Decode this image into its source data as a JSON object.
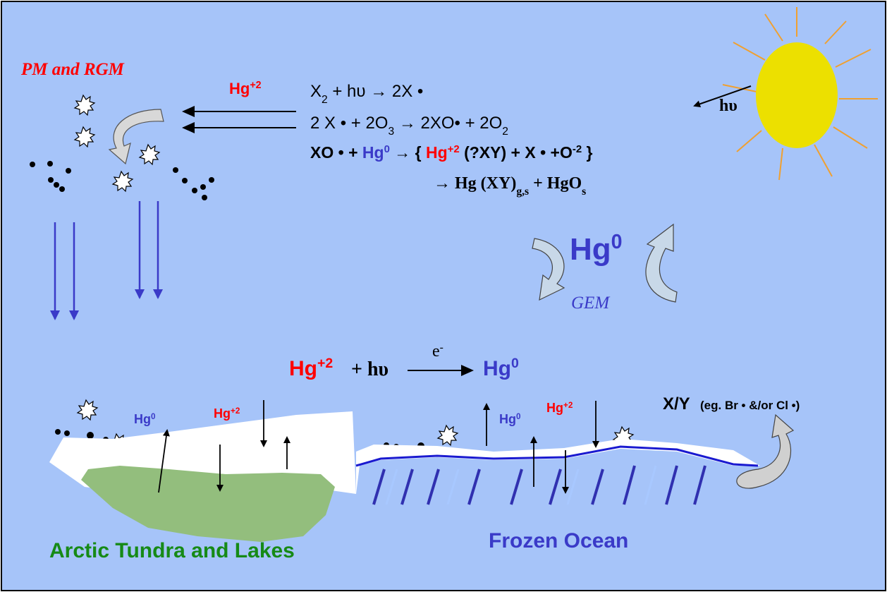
{
  "atmosphere": {
    "particles_label": "PM and RGM",
    "oxidized_species": {
      "text": "Hg",
      "sup": "+2"
    },
    "reactions": [
      [
        {
          "text": "X",
          "sub": "2"
        },
        {
          "text": " + hυ  →   2X •"
        }
      ],
      [
        {
          "text": "2 X • + 2O",
          "sub": "3"
        },
        {
          "text": " →  2XO• + 2O",
          "sub": "2"
        }
      ],
      [
        {
          "text": "XO • + "
        },
        {
          "text": "Hg",
          "sup": "0",
          "color": "#3a3ac8"
        },
        {
          "text": " → { "
        },
        {
          "text": "Hg",
          "sup": "+2",
          "color": "#ff0000"
        },
        {
          "text": " (?XY) + X • +O",
          "sup": "-2"
        },
        {
          "text": " }"
        }
      ],
      [
        {
          "text": "→ Hg (XY)",
          "sub": "g,s"
        },
        {
          "text": " + HgO",
          "sub": "s"
        }
      ]
    ],
    "photon": "hυ",
    "gem_species": {
      "text": "Hg",
      "sup": "0"
    },
    "gem_label": "GEM"
  },
  "surface": {
    "photoreduction": {
      "reactant": {
        "text": "Hg",
        "sup": "+2"
      },
      "operator": "+ hυ",
      "electron": {
        "text": "e",
        "sup": "-"
      },
      "product": {
        "text": "Hg",
        "sup": "0"
      }
    },
    "flux_labels": [
      {
        "text": "Hg",
        "sup": "0"
      },
      {
        "text": "Hg",
        "sup": "+2"
      },
      {
        "text": "Hg",
        "sup": "0"
      },
      {
        "text": "Hg",
        "sup": "+2"
      }
    ],
    "halogen_label": "X/Y",
    "halogen_note": "(eg. Br • &/or Cl •)",
    "land_label": "Arctic Tundra and Lakes",
    "ocean_label": "Frozen Ocean"
  }
}
